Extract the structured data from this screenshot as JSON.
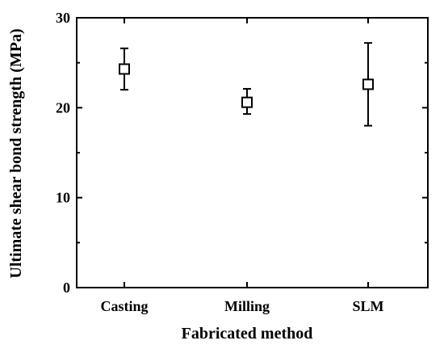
{
  "chart_data": {
    "type": "scatter",
    "title": "",
    "xlabel": "Fabricated method",
    "ylabel": "Ultimate shear bond strength (MPa)",
    "categories": [
      "Casting",
      "Milling",
      "SLM"
    ],
    "series": [
      {
        "values": [
          24.3,
          20.6,
          22.6
        ],
        "error_low": [
          22.0,
          19.3,
          18.0
        ],
        "error_high": [
          26.6,
          22.1,
          27.2
        ]
      }
    ],
    "ylim": [
      0,
      30
    ],
    "yticks": [
      0,
      10,
      20,
      30
    ],
    "ytick_labels": [
      "0",
      "10",
      "20",
      "30"
    ],
    "grid": false,
    "marker": "open-square",
    "color": "#000000"
  }
}
